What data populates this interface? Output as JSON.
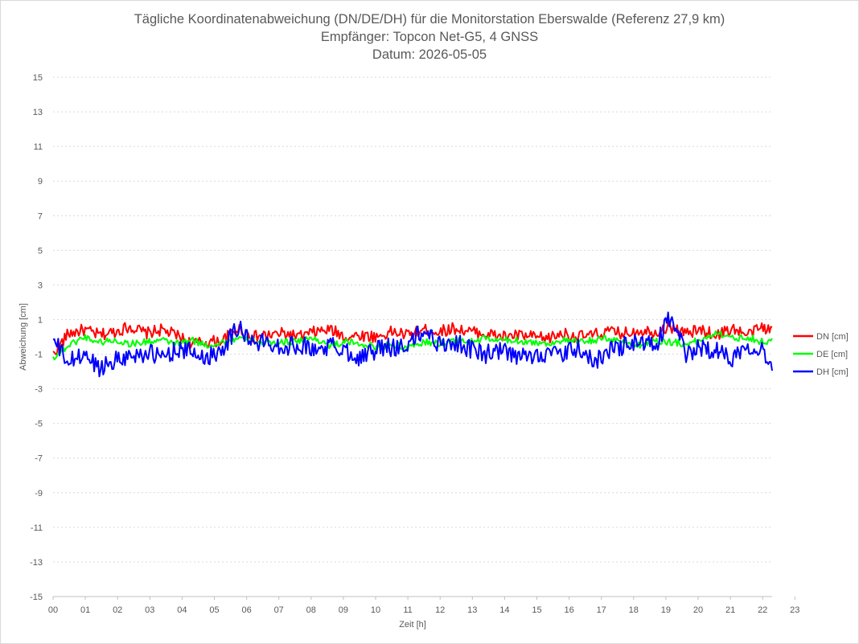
{
  "chart_data": {
    "type": "line",
    "title": [
      "Tägliche Koordinatenabweichung (DN/DE/DH) für die Monitorstation Eberswalde (Referenz 27,9 km)",
      "Empfänger: Topcon Net-G5, 4 GNSS",
      "Datum: 2026-05-05"
    ],
    "xlabel": "Zeit [h]",
    "ylabel": "Abweichung [cm]",
    "xlim": [
      0,
      23.3
    ],
    "ylim": [
      -15,
      15
    ],
    "y_ticks": [
      15,
      13,
      11,
      9,
      7,
      5,
      3,
      1,
      -1,
      -3,
      -5,
      -7,
      -9,
      -11,
      -13,
      -15
    ],
    "x_tick_labels": [
      "00",
      "01",
      "02",
      "03",
      "04",
      "05",
      "06",
      "07",
      "08",
      "09",
      "10",
      "11",
      "12",
      "13",
      "14",
      "15",
      "16",
      "17",
      "18",
      "19",
      "20",
      "21",
      "22",
      "23"
    ],
    "grid": "horizontal-dotted",
    "legend_position": "right",
    "colors": {
      "DN": "#ff0000",
      "DE": "#00ff00",
      "DH": "#0000ff"
    },
    "series": [
      {
        "name": "DN [cm]",
        "color": "#ff0000",
        "x": [
          0,
          0.5,
          1,
          1.5,
          2,
          2.5,
          3,
          3.5,
          4,
          4.5,
          5,
          5.5,
          6,
          6.5,
          7,
          7.5,
          8,
          8.5,
          9,
          9.5,
          10,
          10.5,
          11,
          11.5,
          12,
          12.5,
          13,
          13.5,
          14,
          14.5,
          15,
          15.5,
          16,
          16.5,
          17,
          17.5,
          18,
          18.5,
          19,
          19.5,
          20,
          20.5,
          21,
          21.5,
          22,
          22.5,
          23,
          23.3
        ],
        "y": [
          -1.0,
          0.2,
          0.4,
          0.1,
          0.3,
          0.6,
          0.2,
          0.4,
          0.1,
          -0.4,
          -0.3,
          -0.2,
          0.5,
          0.0,
          0.1,
          0.2,
          0.0,
          0.3,
          0.4,
          0.0,
          0.1,
          0.0,
          0.3,
          0.1,
          0.4,
          0.3,
          0.5,
          0.3,
          0.2,
          0.0,
          0.1,
          0.0,
          -0.1,
          0.2,
          0.0,
          0.1,
          0.3,
          0.2,
          0.4,
          0.3,
          0.6,
          0.2,
          0.4,
          0.1,
          0.5,
          0.1,
          0.6,
          0.3
        ]
      },
      {
        "name": "DE [cm]",
        "color": "#00ff00",
        "x": [
          0,
          0.5,
          1,
          1.5,
          2,
          2.5,
          3,
          3.5,
          4,
          4.5,
          5,
          5.5,
          6,
          6.5,
          7,
          7.5,
          8,
          8.5,
          9,
          9.5,
          10,
          10.5,
          11,
          11.5,
          12,
          12.5,
          13,
          13.5,
          14,
          14.5,
          15,
          15.5,
          16,
          16.5,
          17,
          17.5,
          18,
          18.5,
          19,
          19.5,
          20,
          20.5,
          21,
          21.5,
          22,
          22.5,
          23,
          23.3
        ],
        "y": [
          -1.2,
          -0.5,
          0.0,
          -0.3,
          -0.2,
          -0.4,
          -0.3,
          -0.2,
          -0.4,
          -0.2,
          -0.5,
          -0.3,
          -0.1,
          -0.2,
          -0.4,
          -0.3,
          -0.2,
          -0.1,
          -0.5,
          -0.3,
          -0.4,
          -0.6,
          -0.4,
          -0.7,
          -0.3,
          -0.4,
          -0.2,
          -0.3,
          -0.1,
          -0.2,
          -0.2,
          -0.3,
          -0.4,
          -0.2,
          -0.3,
          -0.2,
          -0.1,
          -0.3,
          -0.5,
          -0.2,
          -0.3,
          -0.4,
          -0.2,
          0.3,
          -0.1,
          0.0,
          -0.3,
          -0.2
        ]
      },
      {
        "name": "DH [cm]",
        "color": "#0000ff",
        "x": [
          0,
          0.5,
          1,
          1.5,
          2,
          2.5,
          3,
          3.5,
          4,
          4.5,
          5,
          5.5,
          6,
          6.5,
          7,
          7.5,
          8,
          8.5,
          9,
          9.5,
          10,
          10.5,
          11,
          11.5,
          12,
          12.5,
          13,
          13.5,
          14,
          14.5,
          15,
          15.5,
          16,
          16.5,
          17,
          17.5,
          18,
          18.5,
          19,
          19.5,
          20,
          20.5,
          21,
          21.5,
          22,
          22.5,
          23,
          23.3
        ],
        "y": [
          -0.2,
          -1.5,
          -1.0,
          -1.8,
          -1.3,
          -1.1,
          -0.9,
          -1.2,
          -0.7,
          -0.9,
          -1.2,
          -0.6,
          0.6,
          -0.4,
          -0.3,
          -0.6,
          -0.4,
          -0.8,
          -0.5,
          -0.8,
          -1.2,
          -0.7,
          -0.6,
          -0.5,
          0.4,
          -0.4,
          -0.3,
          -0.7,
          -1.0,
          -0.8,
          -1.2,
          -1.1,
          -0.9,
          -1.1,
          -0.6,
          -1.5,
          -0.8,
          -0.5,
          -0.3,
          -0.6,
          1.2,
          -1.0,
          -0.6,
          -0.8,
          -1.2,
          -0.4,
          -0.8,
          -1.6
        ]
      }
    ]
  }
}
